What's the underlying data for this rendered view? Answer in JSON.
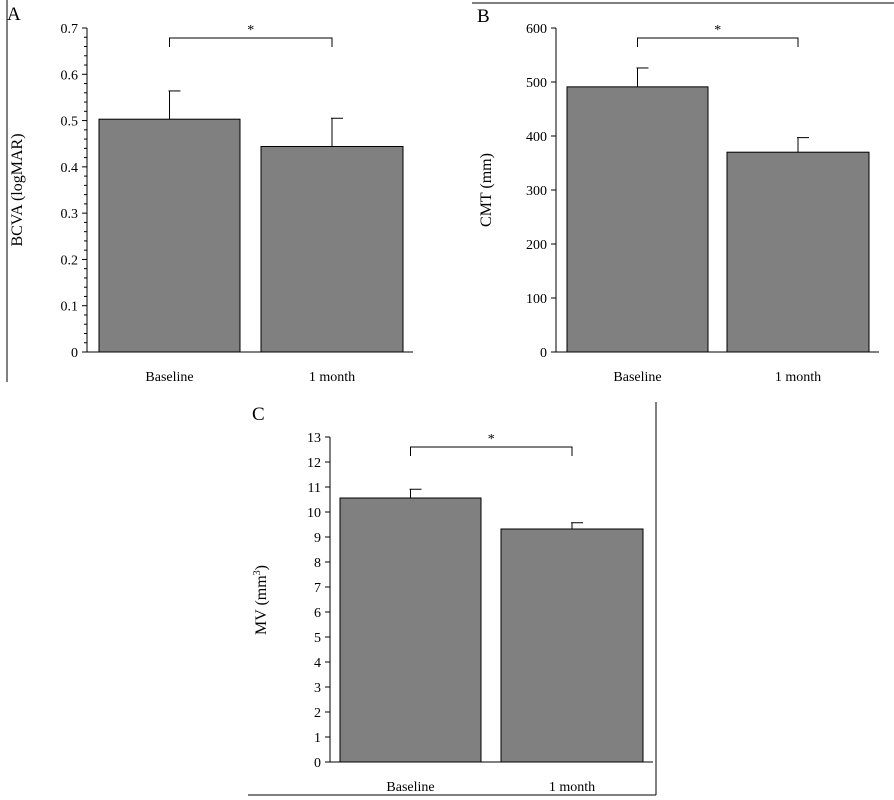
{
  "chart_data": [
    {
      "type": "bar",
      "panel": "A",
      "ylabel": "BCVA (logMAR)",
      "ylabel_sup": "",
      "ylabel_suffix": "",
      "categories": [
        "Baseline",
        "1 month"
      ],
      "values": [
        0.503,
        0.444
      ],
      "error": [
        0.061,
        0.061
      ],
      "ylim": [
        0,
        0.7
      ],
      "yticks": [
        "0",
        "0.1",
        "0.2",
        "0.3",
        "0.4",
        "0.5",
        "0.6",
        "0.7"
      ],
      "bar_color": "#808080",
      "significance": "*"
    },
    {
      "type": "bar",
      "panel": "B",
      "ylabel": "CMT (mm)",
      "ylabel_sup": "",
      "ylabel_suffix": "",
      "categories": [
        "Baseline",
        "1 month"
      ],
      "values": [
        491,
        370
      ],
      "error": [
        35,
        27
      ],
      "ylim": [
        0,
        600
      ],
      "yticks": [
        "0",
        "100",
        "200",
        "300",
        "400",
        "500",
        "600"
      ],
      "bar_color": "#808080",
      "significance": "*"
    },
    {
      "type": "bar",
      "panel": "C",
      "ylabel": "MV (mm",
      "ylabel_sup": "3",
      "ylabel_suffix": ")",
      "categories": [
        "Baseline",
        "1 month"
      ],
      "values": [
        10.56,
        9.32
      ],
      "error": [
        0.35,
        0.25
      ],
      "ylim": [
        0,
        13
      ],
      "yticks": [
        "0",
        "1",
        "2",
        "3",
        "4",
        "5",
        "6",
        "7",
        "8",
        "9",
        "10",
        "11",
        "12",
        "13"
      ],
      "bar_color": "#808080",
      "significance": "*"
    }
  ]
}
